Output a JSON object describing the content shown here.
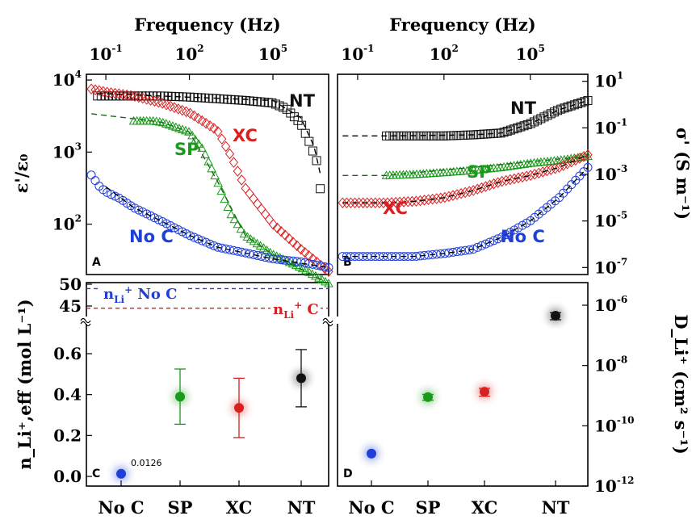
{
  "colors": {
    "No C": "#1f3fd9",
    "SP": "#1a9a1a",
    "XC": "#d92020",
    "NT": "#111111"
  },
  "top_axis": {
    "label": "Frequency (Hz)",
    "ticks": [
      {
        "base": "10",
        "exp": "-1",
        "log": -1
      },
      {
        "base": "10",
        "exp": "2",
        "log": 2
      },
      {
        "base": "10",
        "exp": "5",
        "log": 5
      }
    ]
  },
  "panel_letters": [
    "A",
    "B",
    "C",
    "D"
  ],
  "axis_labels": {
    "A_y": "ε'/ε₀",
    "B_y": "σ' (S m⁻¹)",
    "C_y": "n_Li⁺,eff (mol L⁻¹)",
    "D_y": "D_Li⁺ (cm² s⁻¹)"
  },
  "bottom_categories": [
    "No C",
    "SP",
    "XC",
    "NT"
  ],
  "ref_lines": {
    "no_c": {
      "label": "n",
      "sub": "Li",
      "sup": "+",
      "rest": " No C",
      "value": 49
    },
    "c": {
      "label": "n",
      "sub": "Li",
      "sup": "+",
      "rest": " C",
      "value": 44.5
    }
  },
  "annotation_noc": "0.0126",
  "chart_data": [
    {
      "panel": "A",
      "type": "scatter",
      "x_scale": "log",
      "y_scale": "log",
      "xlabel": "Frequency (Hz)",
      "xlim": [
        0.02,
        10000000.0
      ],
      "ylabel": "ε'/ε₀",
      "ylim": [
        20,
        12000
      ],
      "yticks": [
        {
          "base": "10",
          "exp": "2",
          "v": 100
        },
        {
          "base": "10",
          "exp": "3",
          "v": 1000
        },
        {
          "base": "10",
          "exp": "4",
          "v": 10000
        }
      ],
      "series": [
        {
          "name": "NT",
          "marker": "square",
          "x": [
            0.05,
            1,
            10,
            100,
            1000,
            10000,
            100000,
            300000,
            1000000,
            2000000,
            4000000,
            5000000
          ],
          "y": [
            6000,
            6000,
            6000,
            5800,
            5500,
            5200,
            4800,
            4000,
            2500,
            1400,
            700,
            310
          ]
        },
        {
          "name": "XC",
          "marker": "diamond",
          "x": [
            0.03,
            0.1,
            1,
            10,
            100,
            1000,
            3000,
            10000,
            100000,
            1000000,
            10000000
          ],
          "y": [
            7500,
            6800,
            6000,
            4800,
            3500,
            2000,
            900,
            320,
            100,
            45,
            22
          ]
        },
        {
          "name": "SP",
          "marker": "triangle",
          "x": [
            1,
            5,
            10,
            100,
            300,
            1000,
            3000,
            10000,
            100000,
            1000000,
            10000000
          ],
          "y": [
            2700,
            2700,
            2600,
            1900,
            1100,
            400,
            140,
            70,
            38,
            25,
            15
          ]
        },
        {
          "name": "No C",
          "marker": "circle",
          "x": [
            0.03,
            0.06,
            0.1,
            0.3,
            1,
            10,
            100,
            1000,
            10000,
            100000,
            1000000,
            10000000
          ],
          "y": [
            480,
            330,
            280,
            230,
            170,
            110,
            70,
            48,
            40,
            33,
            30,
            25
          ]
        }
      ],
      "fit_lines": [
        {
          "name": "NT",
          "x": [
            0.05,
            100000,
            1000000,
            3000000,
            5000000
          ],
          "y": [
            6500,
            5200,
            3000,
            1200,
            500
          ]
        },
        {
          "name": "SP",
          "x": [
            0.03,
            1,
            10,
            100,
            1000,
            10000,
            100000,
            10000000
          ],
          "y": [
            3400,
            2900,
            2600,
            1900,
            400,
            70,
            38,
            15
          ]
        },
        {
          "name": "No C",
          "x": [
            0.1,
            1,
            10,
            100,
            1000,
            100000,
            10000000
          ],
          "y": [
            330,
            170,
            110,
            70,
            48,
            33,
            25
          ]
        }
      ],
      "series_labels": [
        "NT",
        "XC",
        "SP",
        "No C"
      ]
    },
    {
      "panel": "B",
      "type": "scatter",
      "x_scale": "log",
      "y_scale": "log",
      "xlabel": "Frequency (Hz)",
      "xlim": [
        0.02,
        10000000.0
      ],
      "ylabel": "σ' (S m⁻¹)",
      "ylim": [
        5e-08,
        20
      ],
      "yticks": [
        {
          "base": "10",
          "exp": "1",
          "v": 10
        },
        {
          "base": "10",
          "exp": "-1",
          "v": 0.1
        },
        {
          "base": "10",
          "exp": "-3",
          "v": 0.001
        },
        {
          "base": "10",
          "exp": "-5",
          "v": 1e-05
        },
        {
          "base": "10",
          "exp": "-7",
          "v": 1e-07
        }
      ],
      "series": [
        {
          "name": "NT",
          "marker": "square",
          "x": [
            1,
            10,
            100,
            1000,
            10000,
            100000,
            1000000,
            10000000
          ],
          "y": [
            0.045,
            0.045,
            0.045,
            0.05,
            0.06,
            0.15,
            0.6,
            1.5
          ]
        },
        {
          "name": "SP",
          "marker": "triangle",
          "x": [
            1,
            10,
            100,
            1000,
            10000,
            100000,
            1000000,
            10000000
          ],
          "y": [
            0.0009,
            0.001,
            0.0012,
            0.0015,
            0.002,
            0.003,
            0.004,
            0.006
          ]
        },
        {
          "name": "XC",
          "marker": "diamond",
          "x": [
            0.03,
            1,
            10,
            100,
            1000,
            10000,
            100000,
            1000000,
            10000000
          ],
          "y": [
            6e-05,
            6e-05,
            7e-05,
            0.0001,
            0.0002,
            0.0005,
            0.0009,
            0.002,
            0.007
          ]
        },
        {
          "name": "No C",
          "marker": "circle",
          "x": [
            0.03,
            1,
            10,
            100,
            1000,
            10000,
            100000,
            1000000,
            10000000
          ],
          "y": [
            3e-07,
            3e-07,
            3e-07,
            4e-07,
            6e-07,
            2e-06,
            1e-05,
            0.0001,
            0.002
          ]
        }
      ],
      "fit_lines": [
        {
          "name": "NT",
          "x": [
            0.03,
            1,
            1000,
            10000,
            100000,
            1000000,
            10000000
          ],
          "y": [
            0.045,
            0.045,
            0.05,
            0.06,
            0.15,
            0.6,
            1.5
          ]
        },
        {
          "name": "SP",
          "x": [
            0.03,
            1,
            10000000
          ],
          "y": [
            0.0009,
            0.0009,
            0.006
          ]
        },
        {
          "name": "XC",
          "x": [
            0.03,
            1,
            10,
            100,
            1000,
            10000,
            100000,
            1000000,
            10000000
          ],
          "y": [
            6e-05,
            6e-05,
            7e-05,
            0.0001,
            0.0002,
            0.0005,
            0.0009,
            0.002,
            0.007
          ]
        },
        {
          "name": "No C",
          "x": [
            0.03,
            1,
            10,
            100,
            1000,
            10000,
            100000,
            1000000,
            10000000
          ],
          "y": [
            3e-07,
            3e-07,
            3e-07,
            4e-07,
            6e-07,
            2e-06,
            1e-05,
            0.0001,
            0.002
          ]
        }
      ],
      "series_labels": [
        "NT",
        "SP",
        "XC",
        "No C"
      ]
    },
    {
      "panel": "C",
      "type": "scatter",
      "categories": [
        "No C",
        "SP",
        "XC",
        "NT"
      ],
      "ylabel": "n_Li⁺,eff (mol L⁻¹)",
      "ylim": [
        -0.05,
        0.72
      ],
      "y_break": true,
      "yticks": [
        "0.0",
        "0.2",
        "0.4",
        "0.6",
        "45",
        "50"
      ],
      "values": [
        0.0126,
        0.39,
        0.335,
        0.48
      ],
      "errors": [
        0,
        0.135,
        0.145,
        0.14
      ]
    },
    {
      "panel": "D",
      "type": "scatter",
      "categories": [
        "No C",
        "SP",
        "XC",
        "NT"
      ],
      "y_scale": "log",
      "ylabel": "D_Li⁺ (cm² s⁻¹)",
      "ylim": [
        1e-12,
        3e-06
      ],
      "yticks": [
        {
          "base": "10",
          "exp": "-6",
          "v": 1e-06
        },
        {
          "base": "10",
          "exp": "-8",
          "v": 1e-08
        },
        {
          "base": "10",
          "exp": "-10",
          "v": 1e-10
        },
        {
          "base": "10",
          "exp": "-12",
          "v": 1e-12
        }
      ],
      "values": [
        1.2e-11,
        9e-10,
        1.35e-09,
        4.5e-07
      ],
      "errors": [
        0,
        2e-10,
        4e-10,
        1.2e-07
      ]
    }
  ]
}
